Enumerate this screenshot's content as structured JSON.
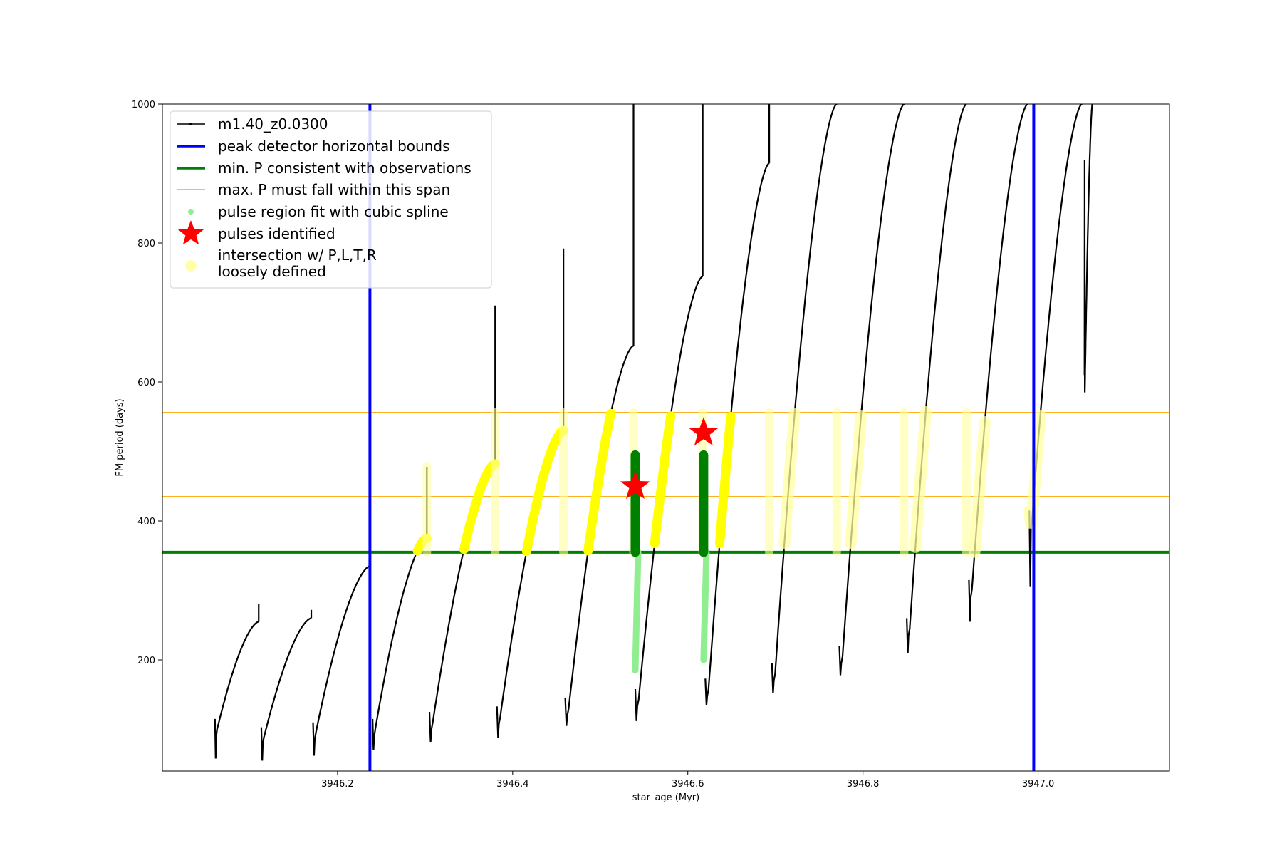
{
  "chart_data": {
    "type": "line",
    "title": "",
    "xlabel": "star_age (Myr)",
    "ylabel": "FM period (days)",
    "xlim": [
      3946.0,
      3947.15
    ],
    "ylim": [
      40,
      1000
    ],
    "x_ticks": [
      3946.2,
      3946.4,
      3946.6,
      3946.8,
      3947.0
    ],
    "x_tick_labels": [
      "3946.2",
      "3946.4",
      "3946.6",
      "3946.8",
      "3947.0"
    ],
    "y_ticks": [
      200,
      400,
      600,
      800,
      1000
    ],
    "y_tick_labels": [
      "200",
      "400",
      "600",
      "800",
      "1000"
    ],
    "grid": false,
    "legend": {
      "placement": "upper-left",
      "entries": [
        {
          "key": "track",
          "label": "m1.40_z0.0300"
        },
        {
          "key": "bounds",
          "label": "peak detector horizontal bounds"
        },
        {
          "key": "minp",
          "label": "min. P consistent with observations"
        },
        {
          "key": "maxp",
          "label": "max. P must fall within this span"
        },
        {
          "key": "spline",
          "label": "pulse region fit with cubic spline"
        },
        {
          "key": "pulses",
          "label": "pulses identified"
        },
        {
          "key": "intersect_line1",
          "label": "intersection w/ P,L,T,R"
        },
        {
          "key": "intersect_line2",
          "label": "loosely defined"
        }
      ]
    },
    "colors": {
      "track": "#000000",
      "bounds": "#0000ff",
      "minp": "#008000",
      "maxp": "#ffa500",
      "spline": "#90ee90",
      "pulses": "#ff0000",
      "intersect": "#ffff00",
      "intersect_loose": "#ffffa0"
    },
    "reference_lines": {
      "vertical_bounds_x": [
        3946.237,
        3946.995
      ],
      "min_period": 355,
      "max_period_span": [
        435,
        556
      ]
    },
    "pulses_identified": [
      {
        "x": 3946.54,
        "y": 450
      },
      {
        "x": 3946.618,
        "y": 527
      }
    ],
    "spline_regions": [
      {
        "x": 3946.54,
        "y_range": [
          185,
          495
        ]
      },
      {
        "x": 3946.618,
        "y_range": [
          200,
          495
        ]
      }
    ],
    "series": [
      {
        "name": "m1.40_z0.0300",
        "cycles": [
          {
            "x0": 3946.06,
            "x1": 3946.11,
            "p0": 100,
            "pm": 255,
            "spike": 280,
            "min": 58
          },
          {
            "x0": 3946.113,
            "x1": 3946.17,
            "p0": 88,
            "pm": 260,
            "spike": 272,
            "min": 55
          },
          {
            "x0": 3946.172,
            "x1": 3946.237,
            "p0": 95,
            "pm": 335,
            "spike": 318,
            "min": 62
          },
          {
            "x0": 3946.24,
            "x1": 3946.302,
            "p0": 100,
            "pm": 375,
            "spike": 478,
            "min": 70
          },
          {
            "x0": 3946.305,
            "x1": 3946.38,
            "p0": 110,
            "pm": 482,
            "spike": 710,
            "min": 82
          },
          {
            "x0": 3946.382,
            "x1": 3946.458,
            "p0": 118,
            "pm": 530,
            "spike": 792,
            "min": 88
          },
          {
            "x0": 3946.46,
            "x1": 3946.538,
            "p0": 130,
            "pm": 652,
            "spike": 1000,
            "min": 105
          },
          {
            "x0": 3946.54,
            "x1": 3946.617,
            "p0": 143,
            "pm": 752,
            "spike": 1000,
            "min": 112
          },
          {
            "x0": 3946.62,
            "x1": 3946.693,
            "p0": 158,
            "pm": 915,
            "spike": 1000,
            "min": 135
          },
          {
            "x0": 3946.696,
            "x1": 3946.77,
            "p0": 180,
            "pm": 1000,
            "spike": 1000,
            "min": 152
          },
          {
            "x0": 3946.773,
            "x1": 3946.847,
            "p0": 205,
            "pm": 1000,
            "spike": 1000,
            "min": 178
          },
          {
            "x0": 3946.85,
            "x1": 3946.918,
            "p0": 245,
            "pm": 1000,
            "spike": 1000,
            "min": 210
          },
          {
            "x0": 3946.921,
            "x1": 3946.988,
            "p0": 300,
            "pm": 1000,
            "spike": 1000,
            "min": 255
          },
          {
            "x0": 3946.99,
            "x1": 3947.05,
            "p0": 400,
            "pm": 1000,
            "spike": 1000,
            "min": 305
          },
          {
            "x0": 3947.053,
            "x1": 3947.062,
            "p0": 595,
            "pm": 1000,
            "spike": 1000,
            "min": 920
          }
        ]
      }
    ]
  }
}
